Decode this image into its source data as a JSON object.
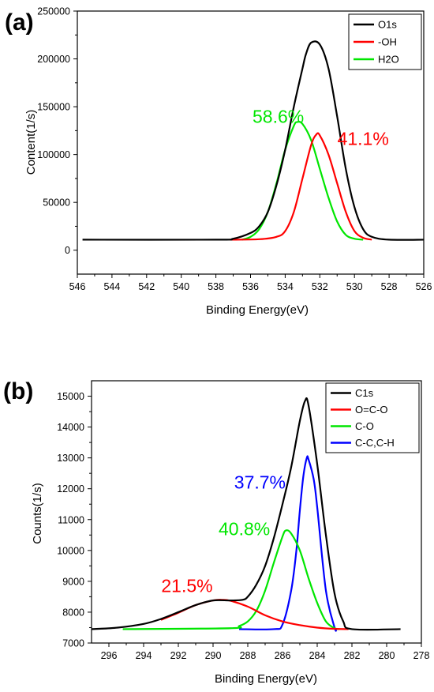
{
  "chart_data": [
    {
      "panel_label": "(a)",
      "type": "line",
      "xlabel": "Binding Energy(eV)",
      "ylabel": "Content(1/s)",
      "xlim": [
        546,
        526
      ],
      "x_reversed": true,
      "ylim": [
        -25000,
        250000
      ],
      "x_ticks": [
        546,
        544,
        542,
        540,
        538,
        536,
        534,
        532,
        530,
        528,
        526
      ],
      "y_ticks": [
        0,
        50000,
        100000,
        150000,
        200000,
        250000
      ],
      "grid": false,
      "legend_position": "top-right",
      "baseline": 11000,
      "series": [
        {
          "name": "O1s",
          "color": "#000000",
          "x": [
            545.7,
            538.0,
            537.0,
            536.0,
            535.5,
            535.0,
            534.5,
            534.0,
            533.5,
            533.0,
            532.8,
            532.5,
            532.0,
            531.5,
            531.0,
            530.5,
            530.0,
            529.5,
            529.0,
            528.0,
            525.9
          ],
          "y": [
            11000,
            11000,
            12000,
            18000,
            25000,
            40000,
            68000,
            105000,
            150000,
            190000,
            205000,
            217000,
            215000,
            190000,
            140000,
            85000,
            45000,
            22000,
            14000,
            11000,
            11000
          ]
        },
        {
          "name": "-OH",
          "color": "#ff0000",
          "x": [
            537.2,
            535.5,
            534.5,
            534.0,
            533.5,
            533.0,
            532.5,
            532.2,
            532.0,
            531.5,
            531.0,
            530.5,
            530.0,
            529.5,
            529.0
          ],
          "y": [
            11000,
            11500,
            14000,
            20000,
            40000,
            75000,
            110000,
            121000,
            120000,
            100000,
            70000,
            40000,
            20000,
            13000,
            11000
          ]
        },
        {
          "name": "H2O",
          "color": "#00e600",
          "x": [
            536.5,
            536.0,
            535.5,
            535.0,
            534.5,
            534.0,
            533.5,
            533.3,
            533.0,
            532.5,
            532.0,
            531.5,
            531.0,
            530.5,
            530.0,
            529.5
          ],
          "y": [
            11000,
            14000,
            22000,
            40000,
            70000,
            105000,
            130000,
            134000,
            132000,
            115000,
            85000,
            55000,
            30000,
            16000,
            12000,
            11000
          ]
        }
      ],
      "annotations": [
        {
          "text": "58.6%",
          "color": "#00e600",
          "x": 534.4,
          "y": 133000
        },
        {
          "text": "41.1%",
          "color": "#ff0000",
          "x": 529.5,
          "y": 110000
        }
      ]
    },
    {
      "panel_label": "(b)",
      "type": "line",
      "xlabel": "Binding Energy(eV)",
      "ylabel": "Counts(1/s)",
      "xlim": [
        297,
        278
      ],
      "x_reversed": true,
      "ylim": [
        7000,
        15500
      ],
      "x_ticks": [
        296,
        294,
        292,
        290,
        288,
        286,
        284,
        282,
        280,
        278
      ],
      "y_ticks": [
        7000,
        8000,
        9000,
        10000,
        11000,
        12000,
        13000,
        14000,
        15000
      ],
      "grid": false,
      "legend_position": "top-right",
      "baseline": 7450,
      "series": [
        {
          "name": "C1s",
          "color": "#000000",
          "x": [
            297.0,
            295.5,
            294.0,
            293.0,
            292.0,
            291.0,
            290.0,
            289.0,
            288.3,
            288.0,
            287.5,
            287.0,
            286.5,
            286.0,
            285.5,
            285.0,
            284.7,
            284.5,
            284.0,
            283.5,
            283.0,
            282.5,
            282.0,
            279.2
          ],
          "y": [
            7450,
            7500,
            7620,
            7780,
            8000,
            8230,
            8380,
            8380,
            8400,
            8500,
            8900,
            9500,
            10400,
            11500,
            12700,
            14200,
            14850,
            14700,
            12800,
            10500,
            8600,
            7700,
            7450,
            7450
          ]
        },
        {
          "name": "O=C-O",
          "color": "#ff0000",
          "x": [
            293.0,
            292.0,
            291.0,
            290.0,
            289.5,
            289.0,
            288.0,
            287.0,
            286.0,
            285.0,
            284.0,
            283.0,
            282.2
          ],
          "y": [
            7750,
            7980,
            8230,
            8380,
            8400,
            8370,
            8180,
            7900,
            7700,
            7580,
            7500,
            7460,
            7450
          ]
        },
        {
          "name": "C-O",
          "color": "#00e600",
          "x": [
            295.2,
            289.0,
            288.5,
            288.0,
            287.5,
            287.0,
            286.5,
            286.0,
            285.8,
            285.5,
            285.0,
            284.5,
            284.0,
            283.5,
            283.0,
            282.7
          ],
          "y": [
            7450,
            7480,
            7550,
            7700,
            8050,
            8700,
            9600,
            10450,
            10650,
            10550,
            10000,
            9100,
            8300,
            7700,
            7480,
            7450
          ]
        },
        {
          "name": "C-C,C-H",
          "color": "#0000ff",
          "x": [
            288.5,
            286.5,
            286.0,
            285.5,
            285.2,
            285.0,
            284.8,
            284.6,
            284.5,
            284.2,
            284.0,
            283.5,
            283.0,
            282.9
          ],
          "y": [
            7450,
            7450,
            7600,
            8700,
            10000,
            11300,
            12400,
            13000,
            12950,
            12300,
            11400,
            8700,
            7500,
            7450
          ]
        }
      ],
      "annotations": [
        {
          "text": "37.7%",
          "color": "#0000ff",
          "x": 287.3,
          "y": 12000
        },
        {
          "text": "40.8%",
          "color": "#00e600",
          "x": 288.2,
          "y": 10500
        },
        {
          "text": "21.5%",
          "color": "#ff0000",
          "x": 291.5,
          "y": 8650
        }
      ]
    }
  ]
}
